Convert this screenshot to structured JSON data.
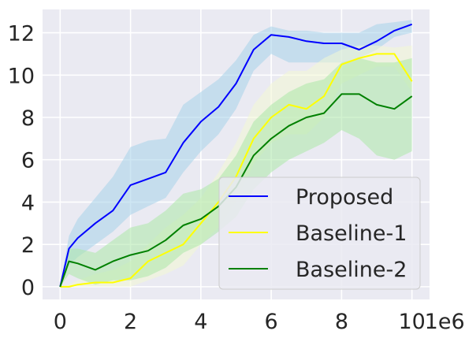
{
  "chart_data": {
    "type": "line",
    "title": "",
    "xlabel": "",
    "ylabel": "",
    "x_offset_label": "1e6",
    "xlim": [
      -0.5,
      10.5
    ],
    "ylim": [
      -0.6,
      13.1
    ],
    "x_ticks": [
      0,
      2,
      4,
      6,
      8,
      10
    ],
    "x_tick_labels": [
      "0",
      "2",
      "4",
      "6",
      "8",
      "10"
    ],
    "y_ticks": [
      0,
      2,
      4,
      6,
      8,
      10,
      12
    ],
    "y_tick_labels": [
      "0",
      "2",
      "4",
      "6",
      "8",
      "10",
      "12"
    ],
    "grid": true,
    "background": "#eaeaf2",
    "legend_position": "lower-right",
    "x": [
      0,
      0.25,
      0.5,
      1.0,
      1.5,
      2.0,
      2.5,
      3.0,
      3.5,
      4.0,
      4.5,
      5.0,
      5.5,
      6.0,
      6.5,
      7.0,
      7.5,
      8.0,
      8.5,
      9.0,
      9.5,
      10.0
    ],
    "series": [
      {
        "name": "Proposed",
        "color": "#0000ff",
        "band_color": "#a6d1ea",
        "values": [
          0,
          1.8,
          2.3,
          3.0,
          3.6,
          4.8,
          5.1,
          5.4,
          6.8,
          7.8,
          8.5,
          9.6,
          11.2,
          11.9,
          11.8,
          11.6,
          11.5,
          11.5,
          11.2,
          11.6,
          12.1,
          12.4
        ],
        "lower": [
          0,
          1.0,
          1.4,
          2.0,
          2.6,
          3.4,
          3.8,
          4.2,
          5.4,
          6.4,
          7.2,
          8.4,
          10.2,
          11.0,
          10.6,
          10.6,
          10.6,
          10.6,
          10.8,
          11.2,
          11.8,
          12.0
        ],
        "upper": [
          0,
          2.4,
          3.2,
          4.2,
          5.2,
          6.6,
          6.9,
          7.0,
          8.6,
          9.2,
          9.8,
          10.7,
          11.9,
          12.3,
          12.1,
          12.1,
          12.0,
          12.0,
          12.0,
          12.4,
          12.5,
          12.6
        ]
      },
      {
        "name": "Baseline-1",
        "color": "#ffff00",
        "band_color": "#f2f7d3",
        "values": [
          0,
          0.0,
          0.1,
          0.2,
          0.2,
          0.4,
          1.2,
          1.6,
          2.0,
          3.0,
          4.0,
          5.2,
          7.0,
          8.0,
          8.6,
          8.4,
          9.0,
          10.5,
          10.8,
          11.0,
          11.0,
          9.7
        ],
        "lower": [
          0,
          0.0,
          0.0,
          0.0,
          0.0,
          0.0,
          0.3,
          0.6,
          1.0,
          2.0,
          2.8,
          4.0,
          5.8,
          6.8,
          7.2,
          7.2,
          8.0,
          9.6,
          10.0,
          10.4,
          10.4,
          9.2
        ],
        "upper": [
          0,
          0.1,
          0.3,
          0.6,
          0.8,
          1.2,
          2.0,
          2.8,
          3.4,
          4.2,
          5.4,
          6.8,
          8.6,
          9.6,
          10.2,
          10.2,
          10.8,
          11.2,
          11.4,
          11.4,
          11.3,
          11.4
        ]
      },
      {
        "name": "Baseline-2",
        "color": "#008000",
        "band_color": "#abe8a8",
        "values": [
          0,
          1.2,
          1.1,
          0.8,
          1.2,
          1.5,
          1.7,
          2.2,
          2.9,
          3.2,
          3.8,
          4.7,
          6.2,
          7.0,
          7.6,
          8.0,
          8.2,
          9.1,
          9.1,
          8.6,
          8.4,
          9.0
        ],
        "lower": [
          0,
          0.6,
          0.4,
          0.1,
          0.3,
          0.3,
          0.5,
          0.9,
          1.6,
          2.0,
          2.6,
          3.3,
          4.6,
          5.4,
          6.0,
          6.4,
          6.8,
          7.4,
          7.0,
          6.2,
          6.0,
          6.4
        ],
        "upper": [
          0,
          1.8,
          1.8,
          1.6,
          2.2,
          2.8,
          3.0,
          3.6,
          4.4,
          4.6,
          5.1,
          6.2,
          7.8,
          8.6,
          9.2,
          9.6,
          9.8,
          10.6,
          10.8,
          10.6,
          10.6,
          10.8
        ]
      }
    ]
  }
}
